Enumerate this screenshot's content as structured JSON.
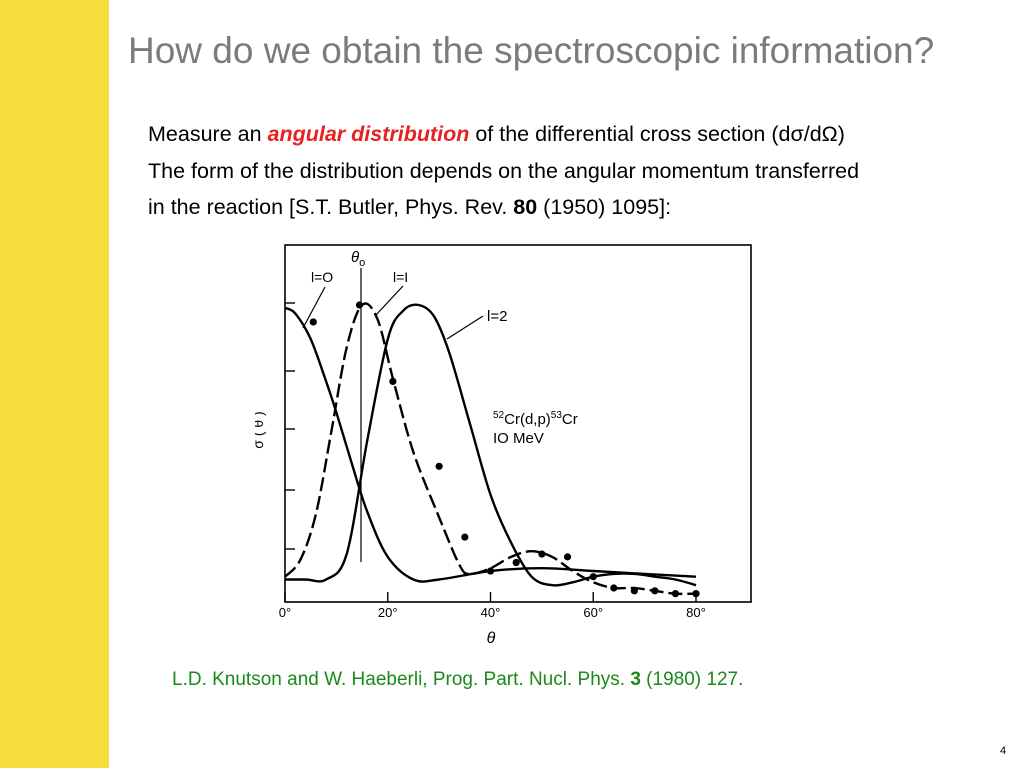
{
  "slide": {
    "title": "How do we obtain the spectroscopic information?",
    "page_number": "4",
    "accent_color": "#f8dc3e"
  },
  "body": {
    "line1_pre": "Measure an ",
    "line1_highlight": "angular distribution",
    "line1_post": " of the differential cross section (dσ/dΩ)",
    "line2": "The form of the distribution depends on the angular momentum transferred",
    "line3_pre": "in the reaction [S.T. Butler, Phys. Rev. ",
    "line3_bold": "80",
    "line3_post": " (1950) 1095]:",
    "highlight_color": "#e8201f"
  },
  "caption": {
    "pre": "L.D. Knutson and W. Haeberli, Prog. Part. Nucl. Phys. ",
    "bold": "3",
    "post": " (1980) 127.",
    "color": "#1a8a1a"
  },
  "chart_data": {
    "type": "line",
    "xlabel": "θ",
    "ylabel": "σ ( θ )",
    "xlim": [
      0,
      90
    ],
    "x_ticks": [
      "0°",
      "20°",
      "40°",
      "60°",
      "80°"
    ],
    "x_tick_values": [
      0,
      20,
      40,
      60,
      80
    ],
    "theta0_label": "θ",
    "theta0_subscript": "o",
    "reaction_label": {
      "sup1": "52",
      "base1": "Cr(d,p)",
      "sup2": "53",
      "base2": "Cr",
      "energy": "IO  MeV"
    },
    "series": [
      {
        "name": "l=O",
        "x": [
          0,
          2,
          5,
          8,
          10,
          13,
          16,
          20,
          25,
          30,
          40,
          50,
          60,
          70,
          80
        ],
        "y": [
          0.99,
          0.97,
          0.88,
          0.73,
          0.62,
          0.44,
          0.27,
          0.11,
          0.03,
          0.03,
          0.06,
          0.07,
          0.06,
          0.05,
          0.04
        ]
      },
      {
        "name": "l=I",
        "x": [
          0,
          3,
          6,
          9,
          12,
          15,
          18,
          21,
          25,
          30,
          34,
          36,
          40,
          44,
          48,
          52,
          56,
          60,
          64,
          68,
          72,
          76,
          80
        ],
        "y": [
          0.04,
          0.1,
          0.26,
          0.55,
          0.85,
          1.0,
          0.95,
          0.74,
          0.48,
          0.25,
          0.08,
          0.05,
          0.07,
          0.11,
          0.13,
          0.11,
          0.06,
          0.02,
          0.0,
          0.0,
          -0.01,
          -0.02,
          -0.02
        ]
      },
      {
        "name": "l=2",
        "x": [
          0,
          4,
          8,
          12,
          16,
          20,
          23,
          26,
          29,
          32,
          36,
          40,
          44,
          48,
          52,
          56,
          60,
          64,
          68,
          72,
          76,
          80
        ],
        "y": [
          0.03,
          0.03,
          0.03,
          0.12,
          0.52,
          0.88,
          0.98,
          1.0,
          0.96,
          0.83,
          0.58,
          0.33,
          0.16,
          0.04,
          0.01,
          0.02,
          0.04,
          0.05,
          0.05,
          0.04,
          0.03,
          0.01
        ]
      }
    ],
    "data_points": {
      "x": [
        5.5,
        14.5,
        21,
        30,
        35,
        40,
        45,
        50,
        55,
        60,
        64,
        68,
        72,
        76,
        80
      ],
      "y": [
        0.94,
        1.0,
        0.73,
        0.43,
        0.18,
        0.06,
        0.09,
        0.12,
        0.11,
        0.04,
        0.0,
        -0.01,
        -0.01,
        -0.02,
        -0.02
      ]
    }
  }
}
